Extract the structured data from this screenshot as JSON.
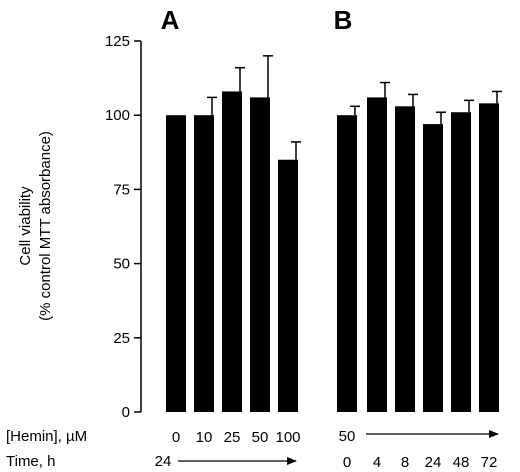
{
  "chart_data": {
    "type": "bar",
    "ylabel_line1": "Cell viability",
    "ylabel_line2": "(% control MTT absorbance)",
    "ylim": [
      0,
      125
    ],
    "yticks": [
      0,
      25,
      50,
      75,
      100,
      125
    ],
    "grid": false,
    "panels": [
      {
        "label": "A",
        "categories": [
          "0",
          "10",
          "25",
          "50",
          "100"
        ],
        "values": [
          100,
          100,
          108,
          106,
          85
        ],
        "errors": [
          0,
          6,
          8,
          14,
          6
        ]
      },
      {
        "label": "B",
        "categories": [
          "0",
          "4",
          "8",
          "24",
          "48",
          "72"
        ],
        "values": [
          100,
          106,
          103,
          97,
          101,
          104
        ],
        "errors": [
          3,
          5,
          4,
          4,
          4,
          4
        ]
      }
    ],
    "row_labels": {
      "hemin": "[Hemin], µM",
      "time": "Time, h"
    },
    "panel_a_time": "24",
    "panel_b_hemin": "50"
  }
}
